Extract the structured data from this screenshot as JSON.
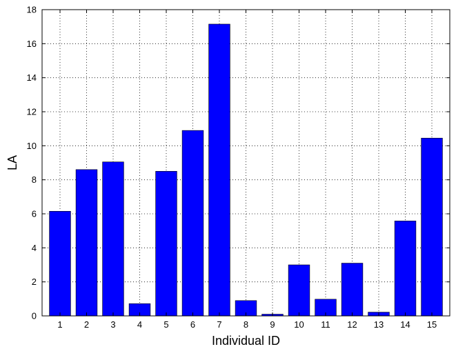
{
  "chart_data": {
    "type": "bar",
    "categories": [
      "1",
      "2",
      "3",
      "4",
      "5",
      "6",
      "7",
      "8",
      "9",
      "10",
      "11",
      "12",
      "13",
      "14",
      "15"
    ],
    "values": [
      6.15,
      8.6,
      9.05,
      0.72,
      8.5,
      10.9,
      17.15,
      0.9,
      0.1,
      3.0,
      0.98,
      3.1,
      0.22,
      5.58,
      10.45
    ],
    "title": "",
    "xlabel": "Individual ID",
    "ylabel": "LA",
    "ylim": [
      0,
      18
    ],
    "yticks": [
      0,
      2,
      4,
      6,
      8,
      10,
      12,
      14,
      16,
      18
    ],
    "grid": true,
    "bar_color": "#0000ff"
  }
}
